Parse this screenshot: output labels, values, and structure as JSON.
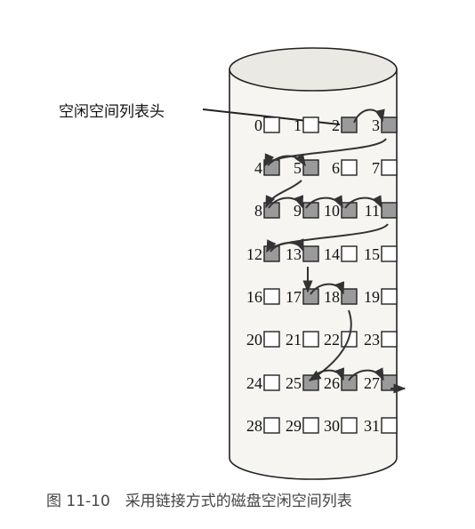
{
  "diagram": {
    "head_label": "空闲空间列表头",
    "caption": "图 11-10　采用链接方式的磁盘空闲空间列表",
    "colors": {
      "free_block": "#9a9a9a",
      "used_block": "#ffffff",
      "stroke": "#222222",
      "cylinder_body": "#f6f5f2",
      "cylinder_top": "#ebe9e4"
    },
    "blocks": [
      {
        "n": "0",
        "free": false
      },
      {
        "n": "1",
        "free": false
      },
      {
        "n": "2",
        "free": true
      },
      {
        "n": "3",
        "free": true
      },
      {
        "n": "4",
        "free": true
      },
      {
        "n": "5",
        "free": true
      },
      {
        "n": "6",
        "free": false
      },
      {
        "n": "7",
        "free": false
      },
      {
        "n": "8",
        "free": true
      },
      {
        "n": "9",
        "free": true
      },
      {
        "n": "10",
        "free": true
      },
      {
        "n": "11",
        "free": true
      },
      {
        "n": "12",
        "free": true
      },
      {
        "n": "13",
        "free": true
      },
      {
        "n": "14",
        "free": false
      },
      {
        "n": "15",
        "free": false
      },
      {
        "n": "16",
        "free": false
      },
      {
        "n": "17",
        "free": true
      },
      {
        "n": "18",
        "free": true
      },
      {
        "n": "19",
        "free": false
      },
      {
        "n": "20",
        "free": false
      },
      {
        "n": "21",
        "free": false
      },
      {
        "n": "22",
        "free": false
      },
      {
        "n": "23",
        "free": false
      },
      {
        "n": "24",
        "free": false
      },
      {
        "n": "25",
        "free": true
      },
      {
        "n": "26",
        "free": true
      },
      {
        "n": "27",
        "free": true
      },
      {
        "n": "28",
        "free": false
      },
      {
        "n": "29",
        "free": false
      },
      {
        "n": "30",
        "free": false
      },
      {
        "n": "31",
        "free": false
      }
    ],
    "free_list": [
      "2",
      "3",
      "4",
      "5",
      "8",
      "9",
      "10",
      "11",
      "12",
      "13",
      "17",
      "18",
      "25",
      "26",
      "27"
    ]
  }
}
